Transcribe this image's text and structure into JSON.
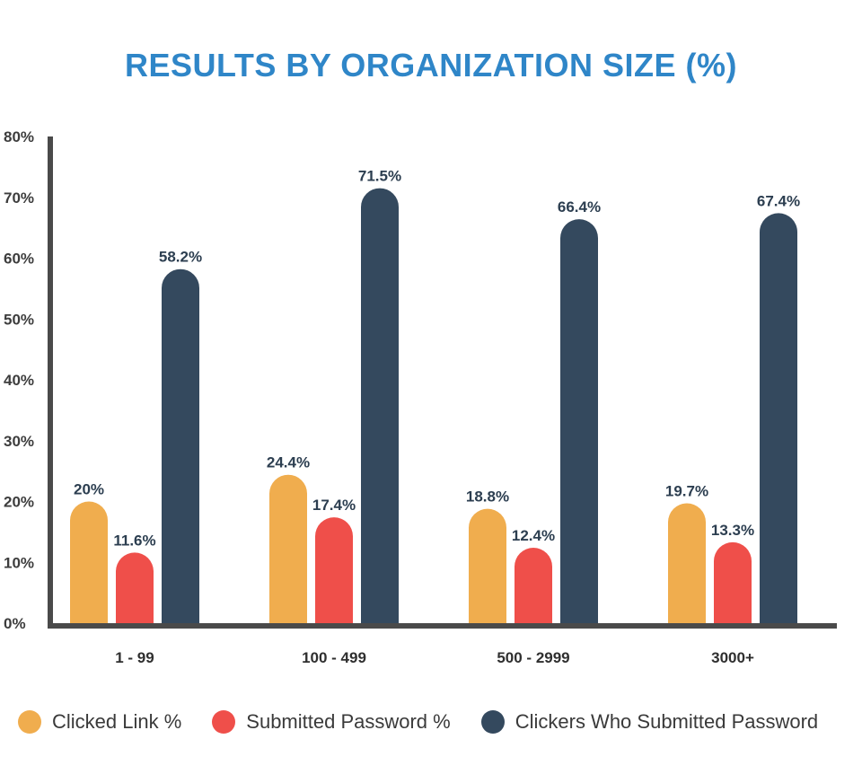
{
  "chart_data": {
    "type": "bar",
    "title": "RESULTS BY ORGANIZATION SIZE (%)",
    "categories": [
      "1 - 99",
      "100 - 499",
      "500 - 2999",
      "3000+"
    ],
    "series": [
      {
        "name": "Clicked Link %",
        "values": [
          20,
          24.4,
          18.8,
          19.7
        ],
        "labels": [
          "20%",
          "24.4%",
          "18.8%",
          "19.7%"
        ],
        "color": "#f0ad4e"
      },
      {
        "name": "Submitted Password %",
        "values": [
          11.6,
          17.4,
          12.4,
          13.3
        ],
        "labels": [
          "11.6%",
          "17.4%",
          "12.4%",
          "13.3%"
        ],
        "color": "#ef4f4a"
      },
      {
        "name": "Clickers Who Submitted Password",
        "values": [
          58.2,
          71.5,
          66.4,
          67.4
        ],
        "labels": [
          "58.2%",
          "71.5%",
          "66.4%",
          "67.4%"
        ],
        "color": "#34495e"
      }
    ],
    "yticks": [
      "0%",
      "10%",
      "20%",
      "30%",
      "40%",
      "50%",
      "60%",
      "70%",
      "80%"
    ],
    "ylim": [
      0,
      80
    ],
    "grid": false,
    "legend_position": "bottom",
    "title_color": "#2f86c8",
    "axis_color": "#4a4a4a"
  }
}
